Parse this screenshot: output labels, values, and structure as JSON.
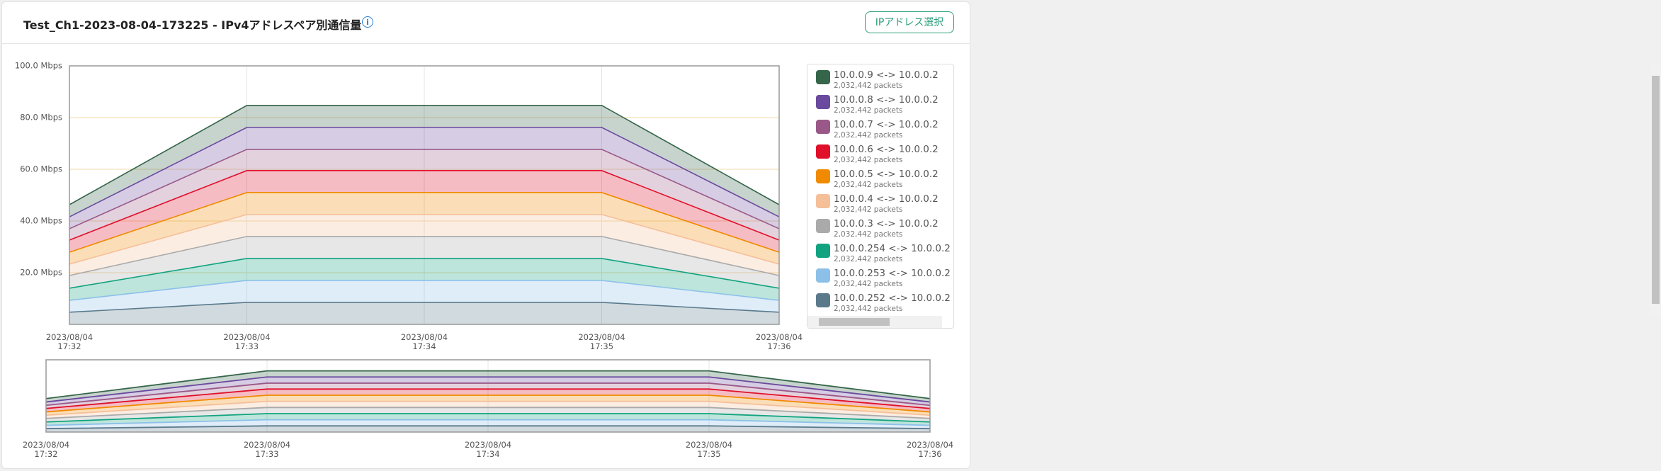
{
  "header": {
    "title": "Test_Ch1-2023-08-04-173225 - IPv4アドレスペア別通信量",
    "button": "IPアドレス選択"
  },
  "chart_data": {
    "type": "stacked-area",
    "categories": [
      "2023/08/04\n17:32",
      "2023/08/04\n17:33",
      "2023/08/04\n17:34",
      "2023/08/04\n17:35",
      "2023/08/04\n17:36"
    ],
    "ylim": [
      0,
      100
    ],
    "yticks": [
      {
        "value": 20,
        "label": "20.0 Mbps"
      },
      {
        "value": 40,
        "label": "40.0 Mbps"
      },
      {
        "value": 60,
        "label": "60.0 Mbps"
      },
      {
        "value": 80,
        "label": "80.0 Mbps"
      },
      {
        "value": 100,
        "label": "100.0 Mbps"
      }
    ],
    "grid": true,
    "legend": "right",
    "series": [
      {
        "name": "10.0.0.9 <-> 10.0.0.2",
        "packets": "2,032,442 packets",
        "color": "#35664a",
        "values": [
          4.7,
          8.5,
          8.5,
          8.5,
          4.7
        ]
      },
      {
        "name": "10.0.0.8 <-> 10.0.0.2",
        "packets": "2,032,442 packets",
        "color": "#6a4a9e",
        "values": [
          4.6,
          8.5,
          8.5,
          8.5,
          4.6
        ]
      },
      {
        "name": "10.0.0.7 <-> 10.0.0.2",
        "packets": "2,032,442 packets",
        "color": "#9a5888",
        "values": [
          4.4,
          8.2,
          8.2,
          8.2,
          4.4
        ]
      },
      {
        "name": "10.0.0.6 <-> 10.0.0.2",
        "packets": "2,032,442 packets",
        "color": "#e0102a",
        "values": [
          4.7,
          8.5,
          8.5,
          8.5,
          4.7
        ]
      },
      {
        "name": "10.0.0.5 <-> 10.0.0.2",
        "packets": "2,032,442 packets",
        "color": "#f08a00",
        "values": [
          4.6,
          8.5,
          8.5,
          8.5,
          4.6
        ]
      },
      {
        "name": "10.0.0.4 <-> 10.0.0.2",
        "packets": "2,032,442 packets",
        "color": "#f5bf98",
        "values": [
          4.4,
          8.5,
          8.5,
          8.5,
          4.4
        ]
      },
      {
        "name": "10.0.0.3 <-> 10.0.0.2",
        "packets": "2,032,442 packets",
        "color": "#aaaaaa",
        "values": [
          4.9,
          8.5,
          8.5,
          8.5,
          4.9
        ]
      },
      {
        "name": "10.0.0.254 <-> 10.0.0.2",
        "packets": "2,032,442 packets",
        "color": "#11a37f",
        "values": [
          4.7,
          8.5,
          8.5,
          8.5,
          4.7
        ]
      },
      {
        "name": "10.0.0.253 <-> 10.0.0.2",
        "packets": "2,032,442 packets",
        "color": "#8cc0e8",
        "values": [
          4.6,
          8.5,
          8.5,
          8.5,
          4.6
        ]
      },
      {
        "name": "10.0.0.252 <-> 10.0.0.2",
        "packets": "2,032,442 packets",
        "color": "#5a7a8c",
        "values": [
          4.7,
          8.5,
          8.5,
          8.5,
          4.7
        ]
      }
    ]
  }
}
